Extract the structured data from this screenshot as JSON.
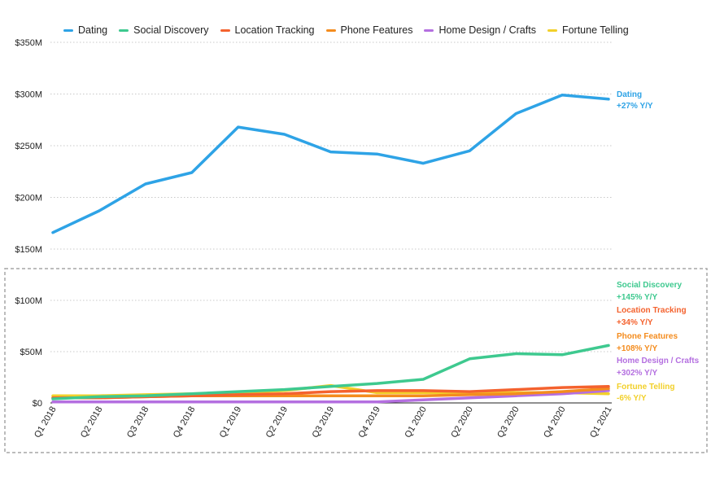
{
  "chart_data": {
    "type": "line",
    "categories": [
      "Q1 2018",
      "Q2 2018",
      "Q3 2018",
      "Q4 2018",
      "Q1 2019",
      "Q2 2019",
      "Q3 2019",
      "Q4 2019",
      "Q1 2020",
      "Q2 2020",
      "Q3 2020",
      "Q4 2020",
      "Q1 2021"
    ],
    "y_axis": {
      "ticks": [
        0,
        50,
        100,
        150,
        200,
        250,
        300,
        350
      ],
      "tick_labels": [
        "$0",
        "$50M",
        "$100M",
        "$150M",
        "$200M",
        "$250M",
        "$300M",
        "$350M"
      ],
      "unit": "M USD",
      "broken_axis": true
    },
    "grid": "horizontal-dotted",
    "legend_position": "top",
    "series": [
      {
        "name": "Dating",
        "color": "#2ea3e6",
        "end_label": "Dating",
        "end_change": "+27% Y/Y",
        "values": [
          166,
          187,
          213,
          224,
          268,
          261,
          244,
          242,
          233,
          245,
          281,
          299,
          295
        ]
      },
      {
        "name": "Social Discovery",
        "color": "#3ec98f",
        "end_label": "Social Discovery",
        "end_change": "+145% Y/Y",
        "values": [
          4,
          6,
          7,
          9,
          11,
          13,
          16,
          19,
          23,
          43,
          48,
          47,
          56
        ]
      },
      {
        "name": "Location Tracking",
        "color": "#f4622e",
        "end_label": "Location Tracking",
        "end_change": "+34% Y/Y",
        "values": [
          5,
          5,
          6,
          7,
          8,
          9,
          11,
          12,
          12,
          11,
          13,
          15,
          16
        ]
      },
      {
        "name": "Phone Features",
        "color": "#f48c1e",
        "end_label": "Phone Features",
        "end_change": "+108% Y/Y",
        "values": [
          5,
          5,
          6,
          7,
          7,
          7,
          7,
          7,
          7,
          8,
          9,
          11,
          14
        ]
      },
      {
        "name": "Home Design / Crafts",
        "color": "#b46fe0",
        "end_label": "Home Design / Crafts",
        "end_change": "+302% Y/Y",
        "values": [
          1,
          1,
          1,
          1,
          1,
          1,
          1,
          1,
          3,
          5,
          7,
          9,
          12
        ]
      },
      {
        "name": "Fortune Telling",
        "color": "#f2d02a",
        "end_label": "Fortune Telling",
        "end_change": "-6% Y/Y",
        "values": [
          7,
          7,
          8,
          9,
          10,
          12,
          17,
          10,
          10,
          10,
          10,
          10,
          9
        ]
      }
    ]
  }
}
